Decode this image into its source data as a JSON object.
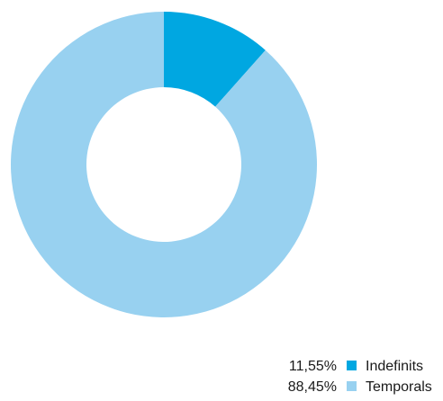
{
  "chart_data": {
    "type": "pie",
    "donut": true,
    "title": "",
    "start": "12 o'clock",
    "direction": "clockwise",
    "legend_position": "bottom-right",
    "slices": [
      {
        "label": "Indefinits",
        "value": 11.55,
        "value_label": "11,55%",
        "color": "#00A7E1"
      },
      {
        "label": "Temporals",
        "value": 88.45,
        "value_label": "88,45%",
        "color": "#98D1F0"
      }
    ]
  }
}
